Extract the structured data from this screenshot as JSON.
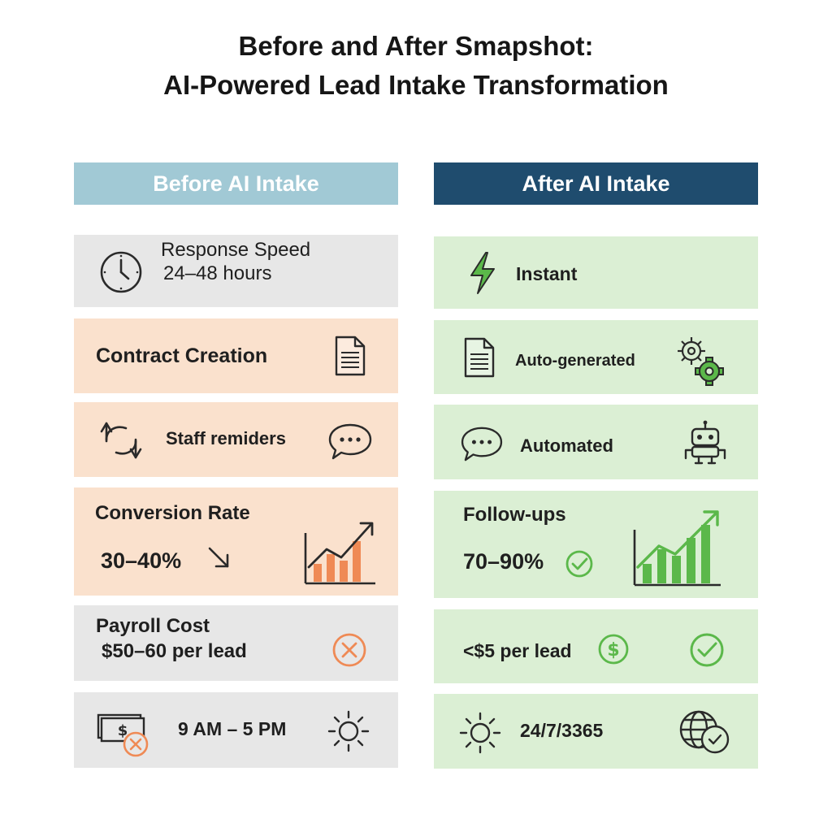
{
  "title": {
    "line1": "Before and After Smapshot:",
    "line2": "AI-Powered Lead Intake Transformation"
  },
  "columns": {
    "before": "Before AI Intake",
    "after": "After AI Intake"
  },
  "before": {
    "row1": {
      "label": "Response Speed",
      "value": "24–48 hours",
      "icon": "clock-icon"
    },
    "row2": {
      "label": "Contract Creation",
      "icon": "document-icon"
    },
    "row3": {
      "label": "Staff remiders",
      "icons": [
        "refresh-arrows-icon",
        "chat-bubble-icon"
      ]
    },
    "row4": {
      "label": "Conversion Rate",
      "value": "30–40%",
      "icons": [
        "down-arrow-icon",
        "bar-chart-icon"
      ]
    },
    "row5": {
      "label": "Payroll Cost",
      "value": "$50–60 per lead",
      "icon": "x-circle-icon"
    },
    "row6": {
      "value": "9 AM – 5 PM",
      "icons": [
        "cash-cancel-icon",
        "sun-icon"
      ]
    }
  },
  "after": {
    "row1": {
      "value": "Instant",
      "icon": "lightning-icon"
    },
    "row2": {
      "value": "Auto-generated",
      "icons": [
        "document-icon",
        "gears-icon"
      ]
    },
    "row3": {
      "value": "Automated",
      "icons": [
        "chat-bubble-icon",
        "robot-icon"
      ]
    },
    "row4": {
      "label": "Follow-ups",
      "value": "70–90%",
      "icons": [
        "check-circle-icon",
        "bar-chart-icon"
      ]
    },
    "row5": {
      "value": "<$5 per lead",
      "icons": [
        "dollar-circle-icon",
        "check-circle-icon"
      ]
    },
    "row6": {
      "value": "24/7/3365",
      "icons": [
        "sun-icon",
        "globe-clock-icon"
      ]
    }
  },
  "colors": {
    "before_header": "#a1c9d5",
    "after_header": "#1f4c6e",
    "gray_card": "#e7e7e7",
    "peach_card": "#fae1cd",
    "green_card": "#dbefd4",
    "orange_accent": "#ef8a55",
    "green_accent": "#5bb84a"
  }
}
